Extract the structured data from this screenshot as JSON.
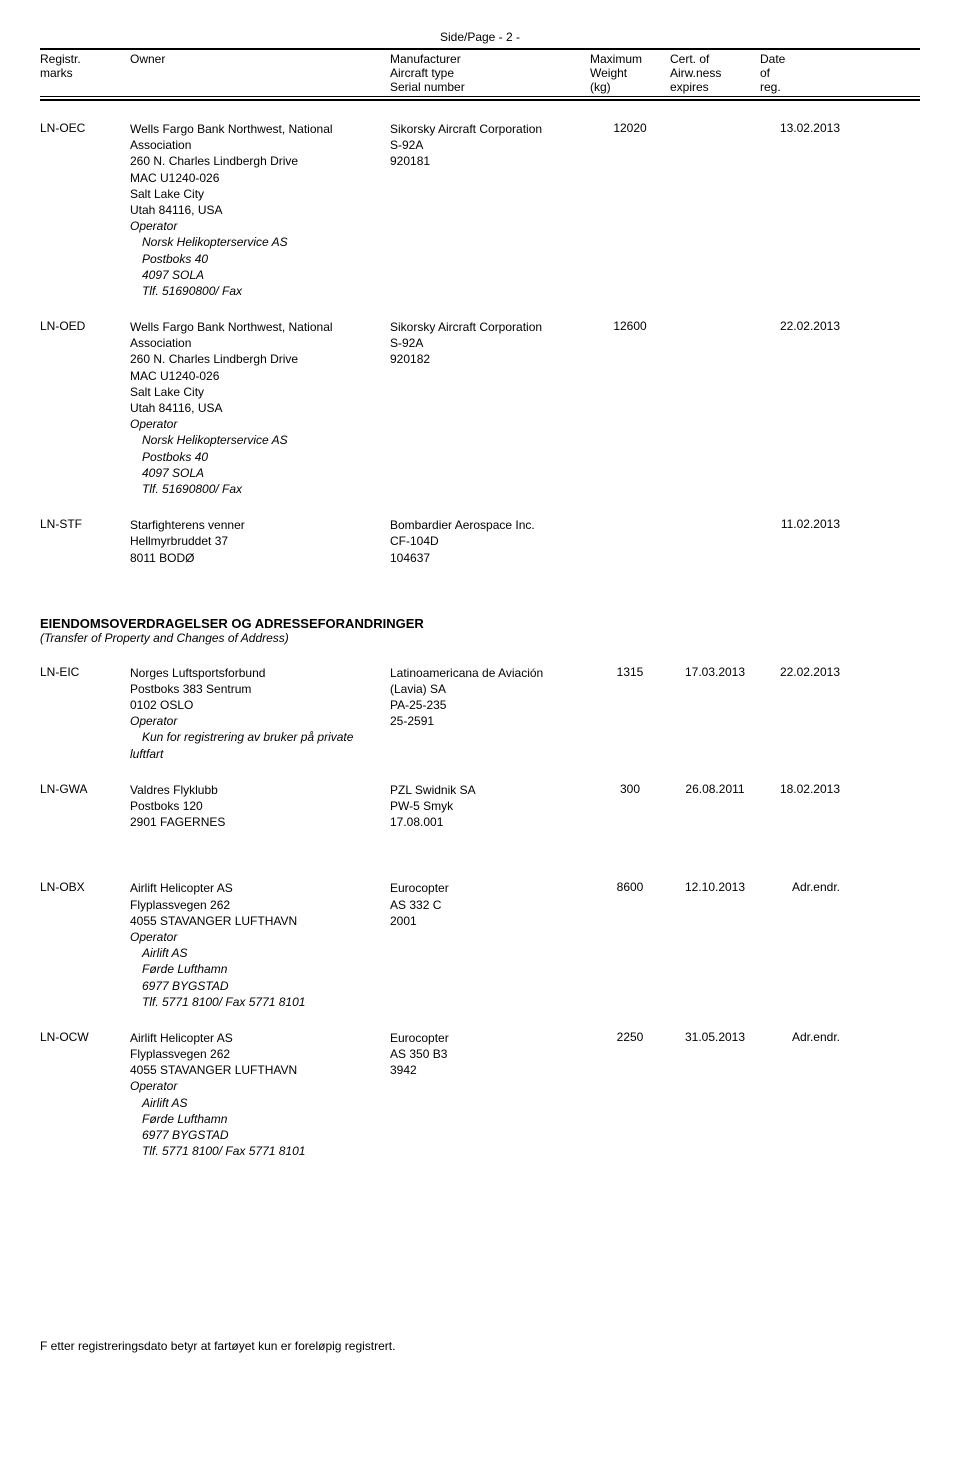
{
  "page_label": "Side/Page - 2 -",
  "header": {
    "reg1": "Registr.",
    "reg2": "marks",
    "owner": "Owner",
    "mfr1": "Manufacturer",
    "mfr2": "Aircraft type",
    "mfr3": "Serial number",
    "wt1": "Maximum",
    "wt2": "Weight",
    "wt3": "(kg)",
    "cert1": "Cert. of",
    "cert2": "Airw.ness",
    "cert3": "expires",
    "date1": "Date",
    "date2": "of",
    "date3": "reg."
  },
  "entries": [
    {
      "reg": "LN-OEC",
      "owner": [
        "Wells Fargo Bank Northwest, National",
        "Association",
        "260 N. Charles Lindbergh Drive",
        "MAC U1240-026",
        "Salt Lake City",
        "Utah 84116, USA"
      ],
      "operator_label": "Operator",
      "operator": [
        "Norsk Helikopterservice AS",
        "Postboks 40",
        "4097 SOLA",
        "Tlf. 51690800/ Fax"
      ],
      "mfr": [
        "Sikorsky Aircraft Corporation",
        "S-92A",
        "920181"
      ],
      "weight": "12020",
      "cert": "",
      "date": "13.02.2013"
    },
    {
      "reg": "LN-OED",
      "owner": [
        "Wells Fargo Bank Northwest, National",
        "Association",
        "260 N. Charles Lindbergh Drive",
        "MAC U1240-026",
        "Salt Lake City",
        "Utah 84116, USA"
      ],
      "operator_label": "Operator",
      "operator": [
        "Norsk Helikopterservice AS",
        "Postboks 40",
        "4097 SOLA",
        "Tlf. 51690800/ Fax"
      ],
      "mfr": [
        "Sikorsky Aircraft Corporation",
        "S-92A",
        "920182"
      ],
      "weight": "12600",
      "cert": "",
      "date": "22.02.2013"
    },
    {
      "reg": "LN-STF",
      "owner": [
        "Starfighterens venner",
        "Hellmyrbruddet 37",
        "8011 BODØ"
      ],
      "mfr": [
        "Bombardier Aerospace Inc.",
        "CF-104D",
        "104637"
      ],
      "weight": "",
      "cert": "",
      "date": "11.02.2013"
    }
  ],
  "section2": {
    "title": "EIENDOMSOVERDRAGELSER OG ADRESSEFORANDRINGER",
    "sub": "(Transfer of Property and Changes of Address)"
  },
  "entries2": [
    {
      "reg": "LN-EIC",
      "owner": [
        "Norges Luftsportsforbund",
        "Postboks 383 Sentrum",
        "0102 OSLO"
      ],
      "operator_label": "Operator",
      "operator": [
        "Kun for registrering av bruker på private"
      ],
      "owner_tail": "luftfart",
      "mfr": [
        "Latinoamericana de Aviación",
        "(Lavia) SA",
        "PA-25-235",
        "25-2591"
      ],
      "weight": "1315",
      "cert": "17.03.2013",
      "date": "22.02.2013"
    },
    {
      "reg": "LN-GWA",
      "owner": [
        "Valdres Flyklubb",
        "Postboks 120",
        "2901 FAGERNES"
      ],
      "mfr": [
        "PZL Swidnik SA",
        "PW-5 Smyk",
        "17.08.001"
      ],
      "weight": "300",
      "cert": "26.08.2011",
      "date": "18.02.2013"
    }
  ],
  "entries3": [
    {
      "reg": "LN-OBX",
      "owner": [
        "Airlift Helicopter AS",
        "Flyplassvegen 262",
        "4055 STAVANGER LUFTHAVN"
      ],
      "operator_label": "Operator",
      "operator": [
        "Airlift AS",
        "Førde Lufthamn",
        "6977 BYGSTAD",
        "Tlf. 5771 8100/ Fax  5771 8101"
      ],
      "mfr": [
        "Eurocopter",
        "AS 332 C",
        "2001"
      ],
      "weight": "8600",
      "cert": "12.10.2013",
      "date": "Adr.endr."
    },
    {
      "reg": "LN-OCW",
      "owner": [
        "Airlift Helicopter AS",
        "Flyplassvegen 262",
        "4055 STAVANGER LUFTHAVN"
      ],
      "operator_label": "Operator",
      "operator": [
        "Airlift AS",
        "Førde Lufthamn",
        "6977 BYGSTAD",
        "Tlf. 5771 8100/ Fax  5771 8101"
      ],
      "mfr": [
        "Eurocopter",
        "AS 350 B3",
        "3942"
      ],
      "weight": "2250",
      "cert": "31.05.2013",
      "date": "Adr.endr."
    }
  ],
  "footer": "F etter registreringsdato betyr at fartøyet kun er foreløpig registrert."
}
